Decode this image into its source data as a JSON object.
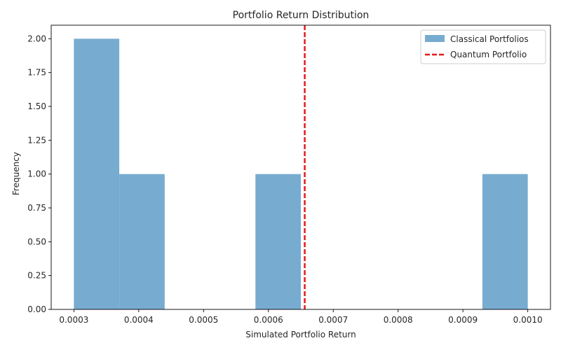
{
  "chart_data": {
    "type": "histogram",
    "title": "Portfolio Return Distribution",
    "xlabel": "Simulated Portfolio Return",
    "ylabel": "Frequency",
    "xlim": [
      0.000265,
      0.001035
    ],
    "ylim": [
      0,
      2.1
    ],
    "xticks": [
      0.0003,
      0.0004,
      0.0005,
      0.0006,
      0.0007,
      0.0008,
      0.0009,
      0.001
    ],
    "xtick_labels": [
      "0.0003",
      "0.0004",
      "0.0005",
      "0.0006",
      "0.0007",
      "0.0008",
      "0.0009",
      "0.0010"
    ],
    "yticks": [
      0,
      0.25,
      0.5,
      0.75,
      1.0,
      1.25,
      1.5,
      1.75,
      2.0
    ],
    "ytick_labels": [
      "0.00",
      "0.25",
      "0.50",
      "0.75",
      "1.00",
      "1.25",
      "1.50",
      "1.75",
      "2.00"
    ],
    "bins": [
      {
        "start": 0.0003,
        "end": 0.00037,
        "count": 2
      },
      {
        "start": 0.00037,
        "end": 0.00044,
        "count": 1
      },
      {
        "start": 0.00044,
        "end": 0.00051,
        "count": 0
      },
      {
        "start": 0.00051,
        "end": 0.00058,
        "count": 0
      },
      {
        "start": 0.00058,
        "end": 0.00065,
        "count": 1
      },
      {
        "start": 0.00065,
        "end": 0.00072,
        "count": 0
      },
      {
        "start": 0.00072,
        "end": 0.00079,
        "count": 0
      },
      {
        "start": 0.00079,
        "end": 0.00086,
        "count": 0
      },
      {
        "start": 0.00086,
        "end": 0.00093,
        "count": 0
      },
      {
        "start": 0.00093,
        "end": 0.001,
        "count": 1
      }
    ],
    "vline": {
      "x": 0.000656,
      "name": "Quantum Portfolio",
      "color": "#e31a1c",
      "style": "dashed"
    },
    "series": [
      {
        "name": "Classical Portfolios",
        "color": "#77acd0"
      },
      {
        "name": "Quantum Portfolio",
        "color": "#e31a1c"
      }
    ],
    "legend_position": "top-right",
    "grid": false
  }
}
